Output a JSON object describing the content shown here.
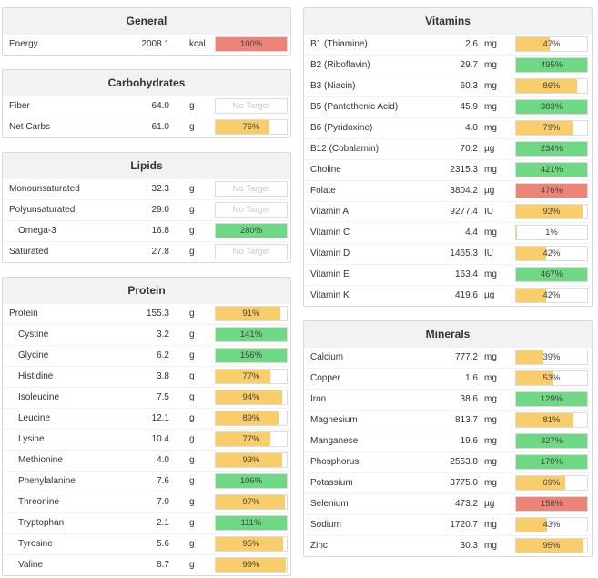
{
  "colors": {
    "red": "#ee8478",
    "green": "#6fd884",
    "yellow": "#f8cd6a",
    "panel": "#f2f2f2"
  },
  "panels": {
    "general": {
      "title": "General",
      "rows": [
        {
          "name": "Energy",
          "amount": "2008.1",
          "unit": "kcal",
          "percent": 100,
          "label": "100%",
          "color": "red"
        }
      ]
    },
    "carbohydrates": {
      "title": "Carbohydrates",
      "rows": [
        {
          "name": "Fiber",
          "amount": "64.0",
          "unit": "g",
          "percent": 0,
          "label": "No Target",
          "color": "none"
        },
        {
          "name": "Net Carbs",
          "amount": "61.0",
          "unit": "g",
          "percent": 76,
          "label": "76%",
          "color": "yellow"
        }
      ]
    },
    "lipids": {
      "title": "Lipids",
      "rows": [
        {
          "name": "Monounsaturated",
          "amount": "32.3",
          "unit": "g",
          "percent": 0,
          "label": "No Target",
          "color": "none"
        },
        {
          "name": "Polyunsaturated",
          "amount": "29.0",
          "unit": "g",
          "percent": 0,
          "label": "No Target",
          "color": "none"
        },
        {
          "name": "Omega-3",
          "amount": "16.8",
          "unit": "g",
          "percent": 100,
          "label": "280%",
          "color": "green",
          "indent": true
        },
        {
          "name": "Saturated",
          "amount": "27.8",
          "unit": "g",
          "percent": 0,
          "label": "No Target",
          "color": "none"
        }
      ]
    },
    "protein": {
      "title": "Protein",
      "rows": [
        {
          "name": "Protein",
          "amount": "155.3",
          "unit": "g",
          "percent": 91,
          "label": "91%",
          "color": "yellow"
        },
        {
          "name": "Cystine",
          "amount": "3.2",
          "unit": "g",
          "percent": 100,
          "label": "141%",
          "color": "green",
          "indent": true
        },
        {
          "name": "Glycine",
          "amount": "6.2",
          "unit": "g",
          "percent": 100,
          "label": "156%",
          "color": "green",
          "indent": true
        },
        {
          "name": "Histidine",
          "amount": "3.8",
          "unit": "g",
          "percent": 77,
          "label": "77%",
          "color": "yellow",
          "indent": true
        },
        {
          "name": "Isoleucine",
          "amount": "7.5",
          "unit": "g",
          "percent": 94,
          "label": "94%",
          "color": "yellow",
          "indent": true
        },
        {
          "name": "Leucine",
          "amount": "12.1",
          "unit": "g",
          "percent": 89,
          "label": "89%",
          "color": "yellow",
          "indent": true
        },
        {
          "name": "Lysine",
          "amount": "10.4",
          "unit": "g",
          "percent": 77,
          "label": "77%",
          "color": "yellow",
          "indent": true
        },
        {
          "name": "Methionine",
          "amount": "4.0",
          "unit": "g",
          "percent": 93,
          "label": "93%",
          "color": "yellow",
          "indent": true
        },
        {
          "name": "Phenylalanine",
          "amount": "7.6",
          "unit": "g",
          "percent": 100,
          "label": "106%",
          "color": "green",
          "indent": true
        },
        {
          "name": "Threonine",
          "amount": "7.0",
          "unit": "g",
          "percent": 97,
          "label": "97%",
          "color": "yellow",
          "indent": true
        },
        {
          "name": "Tryptophan",
          "amount": "2.1",
          "unit": "g",
          "percent": 100,
          "label": "111%",
          "color": "green",
          "indent": true
        },
        {
          "name": "Tyrosine",
          "amount": "5.6",
          "unit": "g",
          "percent": 95,
          "label": "95%",
          "color": "yellow",
          "indent": true
        },
        {
          "name": "Valine",
          "amount": "8.7",
          "unit": "g",
          "percent": 99,
          "label": "99%",
          "color": "yellow",
          "indent": true
        }
      ]
    },
    "vitamins": {
      "title": "Vitamins",
      "rows": [
        {
          "name": "B1 (Thiamine)",
          "amount": "2.6",
          "unit": "mg",
          "percent": 47,
          "label": "47%",
          "color": "yellow"
        },
        {
          "name": "B2 (Riboflavin)",
          "amount": "29.7",
          "unit": "mg",
          "percent": 100,
          "label": "495%",
          "color": "green"
        },
        {
          "name": "B3 (Niacin)",
          "amount": "60.3",
          "unit": "mg",
          "percent": 86,
          "label": "86%",
          "color": "yellow"
        },
        {
          "name": "B5 (Pantothenic Acid)",
          "amount": "45.9",
          "unit": "mg",
          "percent": 100,
          "label": "383%",
          "color": "green"
        },
        {
          "name": "B6 (Pyridoxine)",
          "amount": "4.0",
          "unit": "mg",
          "percent": 79,
          "label": "79%",
          "color": "yellow"
        },
        {
          "name": "B12 (Cobalamin)",
          "amount": "70.2",
          "unit": "µg",
          "percent": 100,
          "label": "234%",
          "color": "green"
        },
        {
          "name": "Choline",
          "amount": "2315.3",
          "unit": "mg",
          "percent": 100,
          "label": "421%",
          "color": "green"
        },
        {
          "name": "Folate",
          "amount": "3804.2",
          "unit": "µg",
          "percent": 100,
          "label": "476%",
          "color": "red"
        },
        {
          "name": "Vitamin A",
          "amount": "9277.4",
          "unit": "IU",
          "percent": 93,
          "label": "93%",
          "color": "yellow"
        },
        {
          "name": "Vitamin C",
          "amount": "4.4",
          "unit": "mg",
          "percent": 1,
          "label": "1%",
          "color": "yellow"
        },
        {
          "name": "Vitamin D",
          "amount": "1465.3",
          "unit": "IU",
          "percent": 42,
          "label": "42%",
          "color": "yellow"
        },
        {
          "name": "Vitamin E",
          "amount": "163.4",
          "unit": "mg",
          "percent": 100,
          "label": "467%",
          "color": "green"
        },
        {
          "name": "Vitamin K",
          "amount": "419.6",
          "unit": "µg",
          "percent": 42,
          "label": "42%",
          "color": "yellow"
        }
      ]
    },
    "minerals": {
      "title": "Minerals",
      "rows": [
        {
          "name": "Calcium",
          "amount": "777.2",
          "unit": "mg",
          "percent": 39,
          "label": "39%",
          "color": "yellow"
        },
        {
          "name": "Copper",
          "amount": "1.6",
          "unit": "mg",
          "percent": 53,
          "label": "53%",
          "color": "yellow"
        },
        {
          "name": "Iron",
          "amount": "38.6",
          "unit": "mg",
          "percent": 100,
          "label": "129%",
          "color": "green"
        },
        {
          "name": "Magnesium",
          "amount": "813.7",
          "unit": "mg",
          "percent": 81,
          "label": "81%",
          "color": "yellow"
        },
        {
          "name": "Manganese",
          "amount": "19.6",
          "unit": "mg",
          "percent": 100,
          "label": "327%",
          "color": "green"
        },
        {
          "name": "Phosphorus",
          "amount": "2553.8",
          "unit": "mg",
          "percent": 100,
          "label": "170%",
          "color": "green"
        },
        {
          "name": "Potassium",
          "amount": "3775.0",
          "unit": "mg",
          "percent": 69,
          "label": "69%",
          "color": "yellow"
        },
        {
          "name": "Selenium",
          "amount": "473.2",
          "unit": "µg",
          "percent": 100,
          "label": "158%",
          "color": "red"
        },
        {
          "name": "Sodium",
          "amount": "1720.7",
          "unit": "mg",
          "percent": 43,
          "label": "43%",
          "color": "yellow"
        },
        {
          "name": "Zinc",
          "amount": "30.3",
          "unit": "mg",
          "percent": 95,
          "label": "95%",
          "color": "yellow"
        }
      ]
    }
  }
}
